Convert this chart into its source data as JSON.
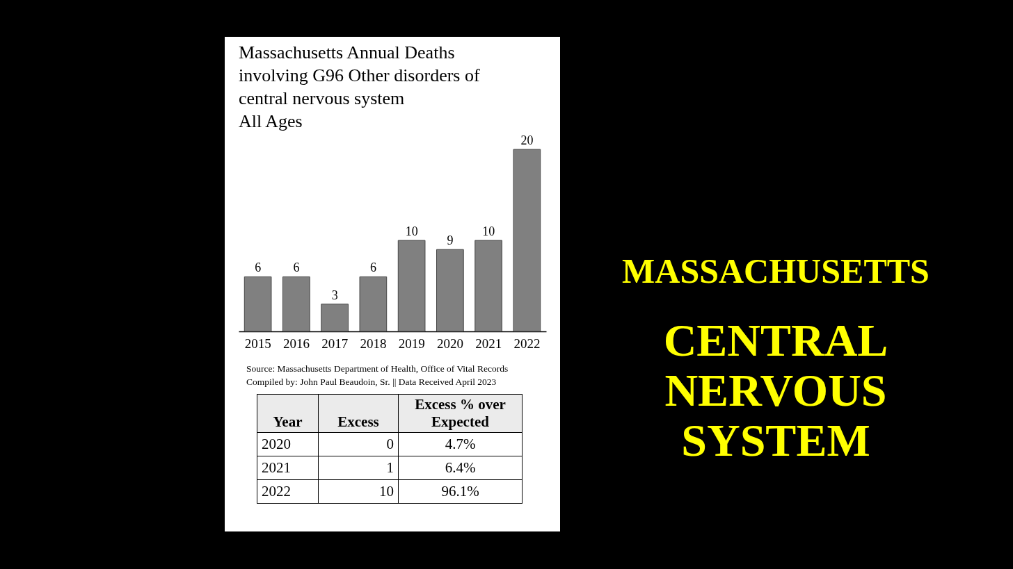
{
  "chart_data": [
    {
      "type": "bar",
      "title": "Massachusetts Annual Deaths\ninvolving G96 Other disorders of\ncentral nervous system\nAll Ages",
      "categories": [
        "2015",
        "2016",
        "2017",
        "2018",
        "2019",
        "2020",
        "2021",
        "2022"
      ],
      "values": [
        6,
        6,
        3,
        6,
        10,
        9,
        10,
        20
      ],
      "color": "#808080",
      "data_labels": true,
      "tick_labels": "x",
      "annotations": [
        "Source:  Massachusetts Department of Health, Office of Vital Records",
        "Compiled by:  John Paul Beaudoin, Sr. || Data Received April 2023"
      ]
    },
    {
      "type": "other",
      "ylabel": "Year",
      "categories": [
        "Excess",
        "Excess % over Expected"
      ],
      "y_categories": [
        "2020",
        "2021",
        "2022"
      ],
      "cells": [
        [
          "0",
          "4.7%"
        ],
        [
          "1",
          "6.4%"
        ],
        [
          "10",
          "96.1%"
        ]
      ]
    },
    {
      "type": "other",
      "annotations": [
        "MASSACHUSETTS",
        "CENTRAL NERVOUS SYSTEM"
      ]
    }
  ]
}
